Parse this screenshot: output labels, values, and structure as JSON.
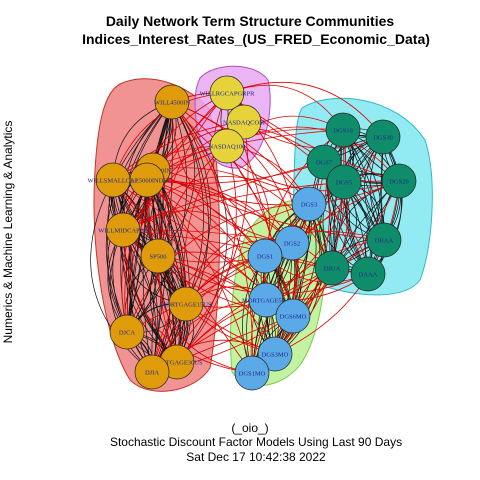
{
  "figure": {
    "title_line1": "Daily Network Term Structure Communities",
    "title_line2": "Indices_Interest_Rates_(US_FRED_Economic_Data)",
    "ylabel": "Numerics & Machine Learning & Analytics",
    "footer_line1": "(_oio_)",
    "footer_line2": "Stochastic Discount Factor Models Using Last 90 Days",
    "footer_line3": "Sat Dec 17 10:42:38 2022"
  },
  "communities": [
    {
      "id": "red",
      "fill": "#f08080",
      "stroke": "#c0392b",
      "node": "#e09b0a"
    },
    {
      "id": "purple",
      "fill": "#e6a8f0",
      "stroke": "#b050c0",
      "node": "#e6d23a"
    },
    {
      "id": "cyan",
      "fill": "#7fe6f0",
      "stroke": "#30b8c8",
      "node": "#0f8c6a"
    },
    {
      "id": "green",
      "fill": "#b9f090",
      "stroke": "#7cc850",
      "node": "#5ba9e6"
    }
  ],
  "nodes": [
    {
      "label": "WILL4500IN",
      "community": "red"
    },
    {
      "label": "WILL5000IN",
      "community": "red"
    },
    {
      "label": "WILL5000INDFC",
      "community": "red"
    },
    {
      "label": "WILLSMALLCAP",
      "community": "red"
    },
    {
      "label": "WILLMIDCAPPR",
      "community": "red"
    },
    {
      "label": "SP500",
      "community": "red"
    },
    {
      "label": "MORTGAGE15US",
      "community": "red"
    },
    {
      "label": "DJCA",
      "community": "red"
    },
    {
      "label": "MORTGAGE30US",
      "community": "red"
    },
    {
      "label": "DJIA",
      "community": "red"
    },
    {
      "label": "WILLRGCAPGRPR",
      "community": "purple"
    },
    {
      "label": "NASDAQCOM",
      "community": "purple"
    },
    {
      "label": "NASDAQ100",
      "community": "purple"
    },
    {
      "label": "DGS10",
      "community": "cyan"
    },
    {
      "label": "DGS30",
      "community": "cyan"
    },
    {
      "label": "DGS7",
      "community": "cyan"
    },
    {
      "label": "DGS5",
      "community": "cyan"
    },
    {
      "label": "DGS20",
      "community": "cyan"
    },
    {
      "label": "DBAA",
      "community": "cyan"
    },
    {
      "label": "DJUA",
      "community": "cyan"
    },
    {
      "label": "DAAA",
      "community": "cyan"
    },
    {
      "label": "DGS3",
      "community": "green"
    },
    {
      "label": "DGS2",
      "community": "green"
    },
    {
      "label": "DGS1",
      "community": "green"
    },
    {
      "label": "MORTGAGE5US",
      "community": "green"
    },
    {
      "label": "DGS6MO",
      "community": "green"
    },
    {
      "label": "DGS3MO",
      "community": "green"
    },
    {
      "label": "DGS1MO",
      "community": "green"
    }
  ]
}
